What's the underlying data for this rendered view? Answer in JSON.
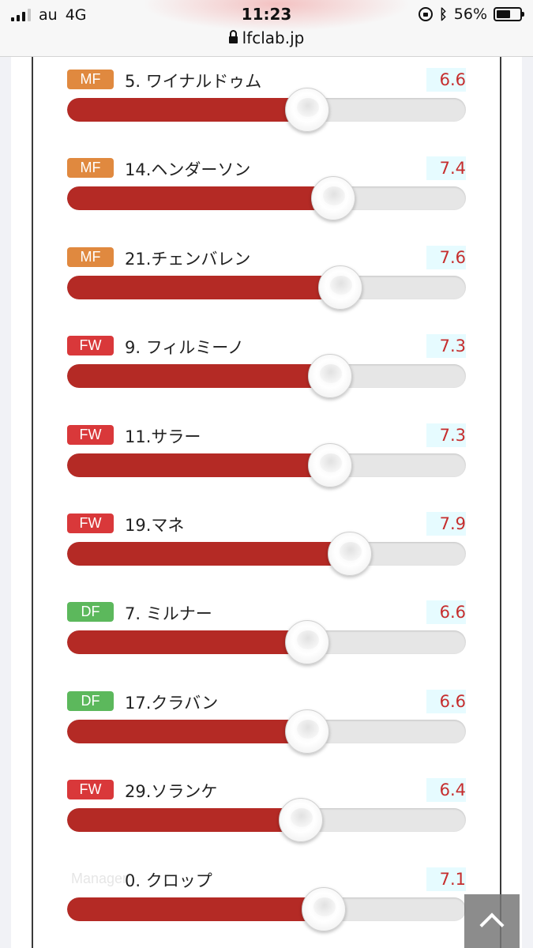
{
  "status_bar": {
    "carrier": "au",
    "network": "4G",
    "time": "11:23",
    "battery": "56%",
    "url": "lfclab.jp"
  },
  "scale_max": 10,
  "players": [
    {
      "position": "MF",
      "name": "5. ワイナルドゥム",
      "score": "6.6",
      "value": 6.6
    },
    {
      "position": "MF",
      "name": "14.ヘンダーソン",
      "score": "7.4",
      "value": 7.4
    },
    {
      "position": "MF",
      "name": "21.チェンバレン",
      "score": "7.6",
      "value": 7.6
    },
    {
      "position": "FW",
      "name": "9. フィルミーノ",
      "score": "7.3",
      "value": 7.3
    },
    {
      "position": "FW",
      "name": "11.サラー",
      "score": "7.3",
      "value": 7.3
    },
    {
      "position": "FW",
      "name": "19.マネ",
      "score": "7.9",
      "value": 7.9
    },
    {
      "position": "DF",
      "name": "7. ミルナー",
      "score": "6.6",
      "value": 6.6
    },
    {
      "position": "DF",
      "name": "17.クラバン",
      "score": "6.6",
      "value": 6.6
    },
    {
      "position": "FW",
      "name": "29.ソランケ",
      "score": "6.4",
      "value": 6.4
    },
    {
      "position": "Manager",
      "name": "0. クロップ",
      "score": "7.1",
      "value": 7.1
    }
  ],
  "scroll_top_label": "^"
}
